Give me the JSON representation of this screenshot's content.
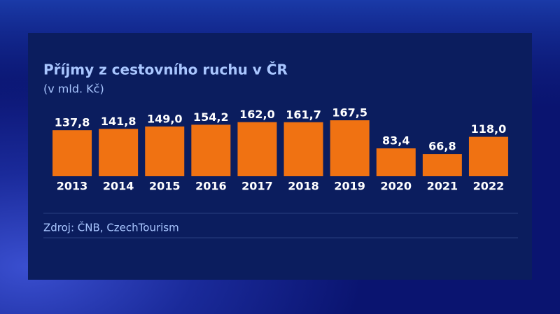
{
  "chart_data": {
    "type": "bar",
    "title": "Příjmy z cestovního ruchu v ČR",
    "subtitle": "(v mld. Kč)",
    "categories": [
      "2013",
      "2014",
      "2015",
      "2016",
      "2017",
      "2018",
      "2019",
      "2020",
      "2021",
      "2022"
    ],
    "values": [
      137.8,
      141.8,
      149.0,
      154.2,
      162.0,
      161.7,
      167.5,
      83.4,
      66.8,
      118.0
    ],
    "value_labels": [
      "137,8",
      "141,8",
      "149,0",
      "154,2",
      "162,0",
      "161,7",
      "167,5",
      "83,4",
      "66,8",
      "118,0"
    ],
    "color": "#f07212",
    "source": "Zdroj: ČNB, CzechTourism"
  }
}
